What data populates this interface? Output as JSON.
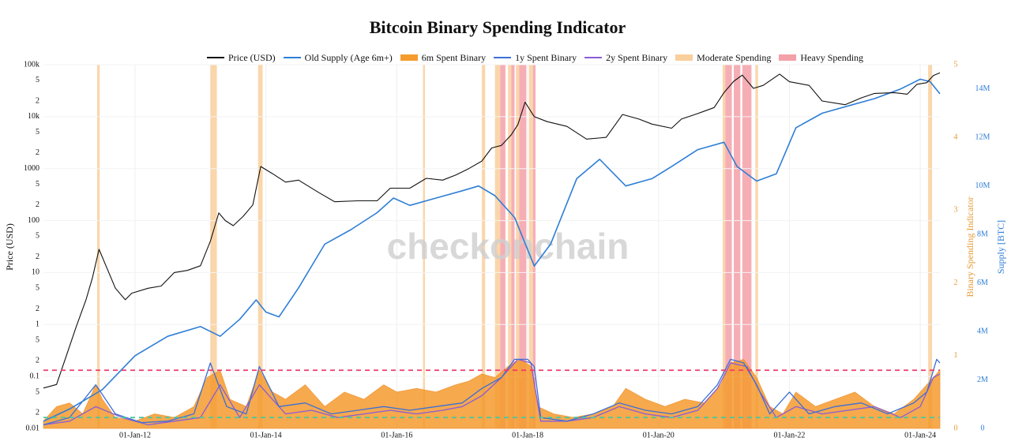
{
  "title": "Bitcoin Binary Spending Indicator",
  "watermark": "checkonchain",
  "legend": [
    {
      "label": "Price (USD)",
      "color": "#111111",
      "kind": "line"
    },
    {
      "label": "Old Supply (Age 6m+)",
      "color": "#2e7ed6",
      "kind": "line"
    },
    {
      "label": "6m Spent Binary",
      "color": "#f59b2e",
      "kind": "block"
    },
    {
      "label": "1y Spent Binary",
      "color": "#3b6fd8",
      "kind": "line"
    },
    {
      "label": "2y Spent Binary",
      "color": "#8a5cd6",
      "kind": "line"
    },
    {
      "label": "Moderate Spending",
      "color": "#f9cf9c",
      "kind": "block"
    },
    {
      "label": "Heavy Spending",
      "color": "#f4a0a8",
      "kind": "block"
    }
  ],
  "axes": {
    "left_label": "Price (USD)",
    "right1_label": "Binary Spending Indicator",
    "right2_label": "Supply [BTC]",
    "left_ticks": [
      {
        "v": 100000,
        "t": "100k"
      },
      {
        "v": 50000,
        "t": "5"
      },
      {
        "v": 20000,
        "t": "2"
      },
      {
        "v": 10000,
        "t": "10k"
      },
      {
        "v": 5000,
        "t": "5"
      },
      {
        "v": 2000,
        "t": "2"
      },
      {
        "v": 1000,
        "t": "1000"
      },
      {
        "v": 500,
        "t": "5"
      },
      {
        "v": 200,
        "t": "2"
      },
      {
        "v": 100,
        "t": "100"
      },
      {
        "v": 50,
        "t": "5"
      },
      {
        "v": 20,
        "t": "2"
      },
      {
        "v": 10,
        "t": "10"
      },
      {
        "v": 5,
        "t": "5"
      },
      {
        "v": 2,
        "t": "2"
      },
      {
        "v": 1,
        "t": "1"
      },
      {
        "v": 0.5,
        "t": "5"
      },
      {
        "v": 0.2,
        "t": "2"
      },
      {
        "v": 0.1,
        "t": "0.1"
      },
      {
        "v": 0.05,
        "t": "5"
      },
      {
        "v": 0.02,
        "t": "2"
      },
      {
        "v": 0.01,
        "t": "0.01"
      }
    ],
    "right1_ticks": [
      0,
      1,
      2,
      3,
      4,
      5
    ],
    "right2_ticks": [
      {
        "v": 0,
        "t": "0"
      },
      {
        "v": 2,
        "t": "2M"
      },
      {
        "v": 4,
        "t": "4M"
      },
      {
        "v": 6,
        "t": "6M"
      },
      {
        "v": 8,
        "t": "8M"
      },
      {
        "v": 10,
        "t": "10M"
      },
      {
        "v": 12,
        "t": "12M"
      },
      {
        "v": 14,
        "t": "14M"
      }
    ],
    "x_ticks": [
      {
        "year": 2012,
        "t": "01-Jan-12"
      },
      {
        "year": 2014,
        "t": "01-Jan-14"
      },
      {
        "year": 2016,
        "t": "01-Jan-16"
      },
      {
        "year": 2018,
        "t": "01-Jan-18"
      },
      {
        "year": 2020,
        "t": "01-Jan-20"
      },
      {
        "year": 2022,
        "t": "01-Jan-22"
      },
      {
        "year": 2024,
        "t": "01-Jan-24"
      }
    ]
  },
  "chart_data": {
    "type": "line",
    "x_range": [
      2010.6,
      2024.3
    ],
    "price_range_log": [
      0.01,
      100000
    ],
    "indicator_range": [
      0,
      5
    ],
    "supply_range_millions": [
      0,
      15
    ],
    "thresholds": [
      {
        "name": "heavy",
        "value": 0.8,
        "color": "#ee3a6a"
      },
      {
        "name": "moderate",
        "value": 0.15,
        "color": "#4ec79a"
      }
    ],
    "price_usd": [
      [
        2010.6,
        0.06
      ],
      [
        2010.8,
        0.07
      ],
      [
        2010.95,
        0.25
      ],
      [
        2011.1,
        0.9
      ],
      [
        2011.25,
        3
      ],
      [
        2011.35,
        8
      ],
      [
        2011.45,
        28
      ],
      [
        2011.55,
        14
      ],
      [
        2011.7,
        5
      ],
      [
        2011.85,
        3
      ],
      [
        2011.95,
        4
      ],
      [
        2012.2,
        5
      ],
      [
        2012.4,
        5.5
      ],
      [
        2012.6,
        10
      ],
      [
        2012.8,
        11
      ],
      [
        2013.0,
        13.5
      ],
      [
        2013.15,
        40
      ],
      [
        2013.28,
        140
      ],
      [
        2013.38,
        100
      ],
      [
        2013.5,
        80
      ],
      [
        2013.65,
        120
      ],
      [
        2013.8,
        200
      ],
      [
        2013.92,
        1100
      ],
      [
        2014.1,
        800
      ],
      [
        2014.3,
        550
      ],
      [
        2014.5,
        600
      ],
      [
        2014.8,
        350
      ],
      [
        2015.05,
        230
      ],
      [
        2015.4,
        240
      ],
      [
        2015.7,
        240
      ],
      [
        2015.9,
        420
      ],
      [
        2016.2,
        420
      ],
      [
        2016.45,
        650
      ],
      [
        2016.7,
        600
      ],
      [
        2016.9,
        750
      ],
      [
        2017.1,
        1000
      ],
      [
        2017.3,
        1400
      ],
      [
        2017.45,
        2500
      ],
      [
        2017.6,
        2800
      ],
      [
        2017.75,
        4500
      ],
      [
        2017.85,
        7000
      ],
      [
        2017.96,
        19000
      ],
      [
        2018.1,
        10000
      ],
      [
        2018.3,
        8000
      ],
      [
        2018.6,
        6500
      ],
      [
        2018.9,
        3700
      ],
      [
        2019.2,
        4000
      ],
      [
        2019.45,
        11000
      ],
      [
        2019.7,
        9000
      ],
      [
        2019.9,
        7200
      ],
      [
        2020.2,
        6000
      ],
      [
        2020.35,
        9000
      ],
      [
        2020.6,
        11500
      ],
      [
        2020.85,
        15000
      ],
      [
        2021.0,
        29000
      ],
      [
        2021.15,
        48000
      ],
      [
        2021.28,
        63000
      ],
      [
        2021.45,
        35000
      ],
      [
        2021.6,
        40000
      ],
      [
        2021.85,
        66000
      ],
      [
        2022.0,
        47000
      ],
      [
        2022.3,
        40000
      ],
      [
        2022.5,
        20000
      ],
      [
        2022.85,
        17000
      ],
      [
        2023.1,
        23000
      ],
      [
        2023.3,
        28000
      ],
      [
        2023.6,
        29000
      ],
      [
        2023.8,
        27000
      ],
      [
        2023.95,
        42000
      ],
      [
        2024.1,
        45000
      ],
      [
        2024.2,
        62000
      ],
      [
        2024.3,
        70000
      ]
    ],
    "old_supply_millions": [
      [
        2010.6,
        0.3
      ],
      [
        2011.0,
        0.8
      ],
      [
        2011.5,
        1.6
      ],
      [
        2012.0,
        3.0
      ],
      [
        2012.5,
        3.8
      ],
      [
        2013.0,
        4.2
      ],
      [
        2013.3,
        3.8
      ],
      [
        2013.6,
        4.5
      ],
      [
        2013.85,
        5.3
      ],
      [
        2014.0,
        4.8
      ],
      [
        2014.2,
        4.6
      ],
      [
        2014.5,
        5.8
      ],
      [
        2014.9,
        7.6
      ],
      [
        2015.3,
        8.2
      ],
      [
        2015.7,
        8.9
      ],
      [
        2015.95,
        9.5
      ],
      [
        2016.2,
        9.2
      ],
      [
        2016.6,
        9.5
      ],
      [
        2017.0,
        9.8
      ],
      [
        2017.25,
        10.0
      ],
      [
        2017.5,
        9.6
      ],
      [
        2017.8,
        8.7
      ],
      [
        2018.1,
        6.7
      ],
      [
        2018.35,
        7.6
      ],
      [
        2018.75,
        10.3
      ],
      [
        2019.1,
        11.1
      ],
      [
        2019.5,
        10.0
      ],
      [
        2019.9,
        10.3
      ],
      [
        2020.2,
        10.8
      ],
      [
        2020.6,
        11.5
      ],
      [
        2021.0,
        11.8
      ],
      [
        2021.2,
        10.8
      ],
      [
        2021.5,
        10.2
      ],
      [
        2021.8,
        10.5
      ],
      [
        2022.1,
        12.4
      ],
      [
        2022.5,
        13.0
      ],
      [
        2022.9,
        13.3
      ],
      [
        2023.3,
        13.6
      ],
      [
        2023.7,
        14.0
      ],
      [
        2024.0,
        14.4
      ],
      [
        2024.15,
        14.3
      ],
      [
        2024.3,
        13.8
      ]
    ],
    "spent_6m_binary": [
      [
        2010.6,
        0.1
      ],
      [
        2010.8,
        0.3
      ],
      [
        2011.0,
        0.35
      ],
      [
        2011.2,
        0.2
      ],
      [
        2011.4,
        0.6
      ],
      [
        2011.5,
        0.4
      ],
      [
        2011.7,
        0.15
      ],
      [
        2012.0,
        0.1
      ],
      [
        2012.3,
        0.2
      ],
      [
        2012.6,
        0.15
      ],
      [
        2012.9,
        0.3
      ],
      [
        2013.1,
        0.7
      ],
      [
        2013.3,
        0.8
      ],
      [
        2013.45,
        0.4
      ],
      [
        2013.7,
        0.3
      ],
      [
        2013.9,
        0.8
      ],
      [
        2014.1,
        0.5
      ],
      [
        2014.3,
        0.4
      ],
      [
        2014.6,
        0.6
      ],
      [
        2014.9,
        0.3
      ],
      [
        2015.2,
        0.5
      ],
      [
        2015.5,
        0.4
      ],
      [
        2015.8,
        0.6
      ],
      [
        2016.0,
        0.5
      ],
      [
        2016.3,
        0.55
      ],
      [
        2016.6,
        0.5
      ],
      [
        2016.9,
        0.6
      ],
      [
        2017.1,
        0.65
      ],
      [
        2017.3,
        0.75
      ],
      [
        2017.5,
        0.7
      ],
      [
        2017.7,
        0.85
      ],
      [
        2017.9,
        0.95
      ],
      [
        2018.05,
        0.85
      ],
      [
        2018.15,
        0.3
      ],
      [
        2018.4,
        0.2
      ],
      [
        2018.7,
        0.15
      ],
      [
        2019.0,
        0.2
      ],
      [
        2019.3,
        0.3
      ],
      [
        2019.5,
        0.55
      ],
      [
        2019.8,
        0.4
      ],
      [
        2020.1,
        0.3
      ],
      [
        2020.4,
        0.4
      ],
      [
        2020.7,
        0.35
      ],
      [
        2020.95,
        0.6
      ],
      [
        2021.1,
        0.9
      ],
      [
        2021.3,
        0.95
      ],
      [
        2021.5,
        0.7
      ],
      [
        2021.7,
        0.3
      ],
      [
        2021.9,
        0.2
      ],
      [
        2022.1,
        0.5
      ],
      [
        2022.4,
        0.3
      ],
      [
        2022.7,
        0.4
      ],
      [
        2023.0,
        0.5
      ],
      [
        2023.3,
        0.3
      ],
      [
        2023.6,
        0.2
      ],
      [
        2023.9,
        0.4
      ],
      [
        2024.1,
        0.6
      ],
      [
        2024.3,
        0.8
      ]
    ],
    "spent_1y_binary": [
      [
        2010.6,
        0.05
      ],
      [
        2011.0,
        0.15
      ],
      [
        2011.4,
        0.6
      ],
      [
        2011.7,
        0.2
      ],
      [
        2012.1,
        0.08
      ],
      [
        2012.5,
        0.1
      ],
      [
        2012.9,
        0.2
      ],
      [
        2013.15,
        0.9
      ],
      [
        2013.4,
        0.3
      ],
      [
        2013.7,
        0.2
      ],
      [
        2013.9,
        0.85
      ],
      [
        2014.2,
        0.3
      ],
      [
        2014.6,
        0.35
      ],
      [
        2015.0,
        0.2
      ],
      [
        2015.4,
        0.25
      ],
      [
        2015.8,
        0.3
      ],
      [
        2016.2,
        0.25
      ],
      [
        2016.6,
        0.3
      ],
      [
        2017.0,
        0.35
      ],
      [
        2017.3,
        0.55
      ],
      [
        2017.6,
        0.7
      ],
      [
        2017.8,
        0.95
      ],
      [
        2018.0,
        0.95
      ],
      [
        2018.1,
        0.85
      ],
      [
        2018.2,
        0.15
      ],
      [
        2018.6,
        0.1
      ],
      [
        2019.0,
        0.2
      ],
      [
        2019.4,
        0.35
      ],
      [
        2019.8,
        0.25
      ],
      [
        2020.2,
        0.2
      ],
      [
        2020.6,
        0.3
      ],
      [
        2020.9,
        0.6
      ],
      [
        2021.1,
        0.95
      ],
      [
        2021.3,
        0.9
      ],
      [
        2021.5,
        0.6
      ],
      [
        2021.7,
        0.2
      ],
      [
        2022.0,
        0.5
      ],
      [
        2022.3,
        0.2
      ],
      [
        2022.7,
        0.3
      ],
      [
        2023.1,
        0.35
      ],
      [
        2023.5,
        0.2
      ],
      [
        2023.9,
        0.35
      ],
      [
        2024.1,
        0.5
      ],
      [
        2024.25,
        0.95
      ],
      [
        2024.3,
        0.9
      ]
    ],
    "spent_2y_binary": [
      [
        2010.6,
        0.05
      ],
      [
        2011.0,
        0.1
      ],
      [
        2011.4,
        0.3
      ],
      [
        2011.8,
        0.15
      ],
      [
        2012.2,
        0.05
      ],
      [
        2012.6,
        0.1
      ],
      [
        2013.0,
        0.15
      ],
      [
        2013.3,
        0.6
      ],
      [
        2013.6,
        0.15
      ],
      [
        2013.9,
        0.6
      ],
      [
        2014.3,
        0.2
      ],
      [
        2014.7,
        0.25
      ],
      [
        2015.1,
        0.15
      ],
      [
        2015.5,
        0.2
      ],
      [
        2015.9,
        0.25
      ],
      [
        2016.3,
        0.2
      ],
      [
        2016.7,
        0.25
      ],
      [
        2017.0,
        0.3
      ],
      [
        2017.3,
        0.45
      ],
      [
        2017.6,
        0.7
      ],
      [
        2017.85,
        0.95
      ],
      [
        2018.05,
        0.9
      ],
      [
        2018.2,
        0.1
      ],
      [
        2018.6,
        0.1
      ],
      [
        2019.0,
        0.15
      ],
      [
        2019.4,
        0.3
      ],
      [
        2019.8,
        0.2
      ],
      [
        2020.2,
        0.15
      ],
      [
        2020.6,
        0.25
      ],
      [
        2020.9,
        0.55
      ],
      [
        2021.1,
        0.9
      ],
      [
        2021.35,
        0.85
      ],
      [
        2021.55,
        0.5
      ],
      [
        2021.8,
        0.15
      ],
      [
        2022.1,
        0.3
      ],
      [
        2022.5,
        0.2
      ],
      [
        2022.9,
        0.25
      ],
      [
        2023.3,
        0.3
      ],
      [
        2023.7,
        0.15
      ],
      [
        2024.0,
        0.3
      ],
      [
        2024.2,
        0.7
      ],
      [
        2024.3,
        0.75
      ]
    ],
    "moderate_spending_periods": [
      [
        2011.42,
        2011.46
      ],
      [
        2013.15,
        2013.25
      ],
      [
        2013.88,
        2013.95
      ],
      [
        2016.4,
        2016.43
      ],
      [
        2017.3,
        2017.35
      ],
      [
        2017.5,
        2017.58
      ],
      [
        2017.7,
        2017.75
      ],
      [
        2017.82,
        2017.87
      ],
      [
        2018.02,
        2018.08
      ],
      [
        2020.98,
        2021.02
      ],
      [
        2021.48,
        2021.52
      ],
      [
        2024.12,
        2024.18
      ]
    ],
    "heavy_spending_periods": [
      [
        2017.58,
        2017.66
      ],
      [
        2017.75,
        2017.8
      ],
      [
        2017.87,
        2017.98
      ],
      [
        2018.08,
        2018.12
      ],
      [
        2021.02,
        2021.12
      ],
      [
        2021.15,
        2021.25
      ],
      [
        2021.28,
        2021.42
      ]
    ]
  }
}
